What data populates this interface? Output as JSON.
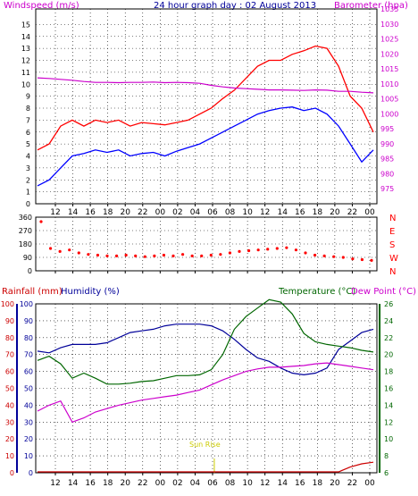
{
  "header": {
    "title": "24 hour graph day : 02 August 2013",
    "left_label": "Windspeed (m/s)",
    "right_label": "Barometer (hpa)"
  },
  "colors": {
    "windspeed": "#ff0000",
    "gust": "#ff0000",
    "avg_speed": "#0000ff",
    "barometer": "#cc00cc",
    "wind_dir": "#ff0000",
    "humidity": "#000099",
    "temperature": "#006600",
    "dew_point": "#cc00cc",
    "rainfall": "#cc0000",
    "sunrise": "#cccc00",
    "axis_green": "#006600",
    "axis_blue": "#000099",
    "axis_magenta": "#cc00cc"
  },
  "x_ticks": [
    "12",
    "14",
    "16",
    "18",
    "20",
    "22",
    "00",
    "02",
    "04",
    "06",
    "08",
    "10",
    "12",
    "14",
    "16",
    "18",
    "20",
    "22",
    "00"
  ],
  "chart_data": [
    {
      "type": "line",
      "name": "wind_barometer",
      "title": "24 hour graph day : 02 August 2013",
      "ylabel_left": "Windspeed (m/s)",
      "ylabel_right": "Barometer (hpa)",
      "left_ylim": [
        0,
        16
      ],
      "left_ticks": [
        "0",
        "1",
        "2",
        "3",
        "4",
        "5",
        "6",
        "7",
        "8",
        "9",
        "10",
        "11",
        "12",
        "13",
        "14",
        "15"
      ],
      "right_ylim": [
        970,
        1035
      ],
      "right_ticks": [
        "975",
        "980",
        "985",
        "990",
        "995",
        "1000",
        "1005",
        "1010",
        "1015",
        "1020",
        "1025",
        "1030",
        "1035"
      ],
      "grid": true,
      "series": [
        {
          "key": "gust",
          "values": [
            4.5,
            5.0,
            6.5,
            7.0,
            6.5,
            7.0,
            6.8,
            7.0,
            6.5,
            6.8,
            6.7,
            6.6,
            6.8,
            7.0,
            7.5,
            8.0,
            8.8,
            9.5,
            10.5,
            11.5,
            12.0,
            12.0,
            12.5,
            12.8,
            13.2,
            13.0,
            11.5,
            9.0,
            8.0,
            6.0
          ]
        },
        {
          "key": "avg_speed",
          "values": [
            1.5,
            2.0,
            3.0,
            4.0,
            4.2,
            4.5,
            4.3,
            4.5,
            4.0,
            4.2,
            4.3,
            4.0,
            4.4,
            4.7,
            5.0,
            5.5,
            6.0,
            6.5,
            7.0,
            7.5,
            7.8,
            8.0,
            8.1,
            7.8,
            8.0,
            7.5,
            6.5,
            5.0,
            3.5,
            4.5
          ]
        },
        {
          "key": "barometer",
          "values": [
            1012,
            1011.8,
            1011.5,
            1011.2,
            1010.8,
            1010.5,
            1010.5,
            1010.4,
            1010.5,
            1010.5,
            1010.6,
            1010.4,
            1010.5,
            1010.4,
            1010.2,
            1009.5,
            1009,
            1008.6,
            1008.4,
            1008.2,
            1008,
            1008,
            1007.9,
            1007.8,
            1008,
            1007.9,
            1007.5,
            1007.5,
            1007.2,
            1007
          ]
        }
      ]
    },
    {
      "type": "scatter",
      "name": "wind_direction",
      "ylim": [
        0,
        360
      ],
      "left_ticks": [
        "0",
        "90",
        "180",
        "270",
        "360"
      ],
      "right_labels": [
        "N",
        "W",
        "S",
        "E",
        "N"
      ],
      "series": [
        {
          "key": "direction",
          "values": [
            330,
            150,
            130,
            140,
            120,
            110,
            105,
            100,
            100,
            105,
            100,
            95,
            100,
            105,
            100,
            110,
            100,
            100,
            105,
            110,
            120,
            130,
            135,
            140,
            145,
            150,
            155,
            140,
            120,
            105,
            100,
            95,
            90,
            80,
            75,
            70
          ]
        }
      ]
    },
    {
      "type": "line",
      "name": "humidity_temperature",
      "left_labels": [
        "Rainfall (mm)",
        "Humidity (%)"
      ],
      "right_labels": [
        "Temperature (°C)",
        "Dew Point (°C)"
      ],
      "rain_ticks": [
        "0",
        "10",
        "20",
        "30",
        "40",
        "50",
        "60",
        "70",
        "80",
        "90",
        "100"
      ],
      "humidity_ticks": [
        "0",
        "10",
        "20",
        "30",
        "40",
        "50",
        "60",
        "70",
        "80",
        "90",
        "100"
      ],
      "temp_ticks": [
        "6",
        "8",
        "10",
        "12",
        "14",
        "16",
        "18",
        "20",
        "22",
        "24",
        "26"
      ],
      "temp_ylim": [
        6,
        26
      ],
      "annotation": "Sun Rise",
      "series": [
        {
          "key": "humidity",
          "values": [
            72,
            71,
            74,
            76,
            76,
            76,
            77,
            80,
            83,
            84,
            85,
            87,
            88,
            88,
            88,
            87,
            84,
            79,
            73,
            68,
            66,
            62,
            59,
            58,
            59,
            62,
            73,
            78,
            83,
            85
          ]
        },
        {
          "key": "temperature",
          "values": [
            19.3,
            19.8,
            18.9,
            17.2,
            17.8,
            17.2,
            16.5,
            16.5,
            16.6,
            16.8,
            16.9,
            17.2,
            17.5,
            17.5,
            17.6,
            18.2,
            20.0,
            23.0,
            24.5,
            25.5,
            26.5,
            26.2,
            24.8,
            22.5,
            21.5,
            21.2,
            21.0,
            20.8,
            20.5,
            20.3
          ]
        },
        {
          "key": "dew_point",
          "values": [
            13.3,
            14.0,
            14.5,
            12.0,
            12.5,
            13.2,
            13.6,
            14.0,
            14.3,
            14.6,
            14.8,
            15.0,
            15.2,
            15.5,
            15.8,
            16.4,
            17.0,
            17.5,
            18.0,
            18.3,
            18.5,
            18.5,
            18.6,
            18.7,
            18.9,
            19.0,
            18.8,
            18.6,
            18.4,
            18.2
          ]
        },
        {
          "key": "rainfall",
          "values": [
            0,
            0,
            0,
            0,
            0,
            0,
            0,
            0,
            0,
            0,
            0,
            0,
            0,
            0,
            0,
            0,
            0,
            0,
            0,
            0,
            0,
            0,
            0,
            0,
            0,
            0,
            0,
            3,
            5,
            6
          ]
        }
      ]
    }
  ]
}
